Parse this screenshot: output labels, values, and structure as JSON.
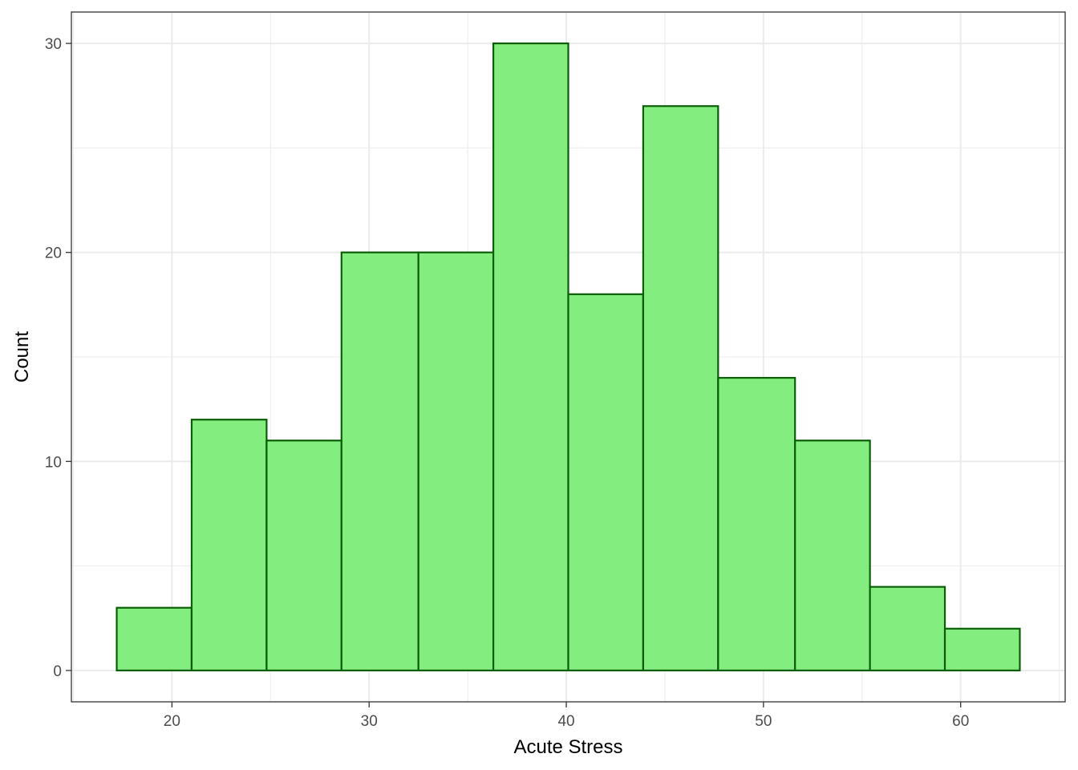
{
  "chart_data": {
    "type": "bar",
    "title": "",
    "xlabel": "Acute Stress",
    "ylabel": "Count",
    "bins": [
      {
        "x0": 17.2,
        "x1": 21.0,
        "count": 3
      },
      {
        "x0": 21.0,
        "x1": 24.8,
        "count": 12
      },
      {
        "x0": 24.8,
        "x1": 28.6,
        "count": 11
      },
      {
        "x0": 28.6,
        "x1": 32.5,
        "count": 20
      },
      {
        "x0": 32.5,
        "x1": 36.3,
        "count": 20
      },
      {
        "x0": 36.3,
        "x1": 40.1,
        "count": 30
      },
      {
        "x0": 40.1,
        "x1": 43.9,
        "count": 18
      },
      {
        "x0": 43.9,
        "x1": 47.7,
        "count": 27
      },
      {
        "x0": 47.7,
        "x1": 51.6,
        "count": 14
      },
      {
        "x0": 51.6,
        "x1": 55.4,
        "count": 11
      },
      {
        "x0": 55.4,
        "x1": 59.2,
        "count": 4
      },
      {
        "x0": 59.2,
        "x1": 63.0,
        "count": 2
      }
    ],
    "xlim": [
      14.9,
      65.3
    ],
    "ylim": [
      -1.5,
      31.5
    ],
    "x_ticks": [
      20,
      30,
      40,
      50,
      60
    ],
    "y_ticks": [
      0,
      10,
      20,
      30
    ],
    "x_tick_labels": [
      "20",
      "30",
      "40",
      "50",
      "60"
    ],
    "y_tick_labels": [
      "0",
      "10",
      "20",
      "30"
    ],
    "grid": true,
    "colors": {
      "bar_fill": "#83ee7f",
      "bar_stroke": "#0b5e06",
      "grid": "#ebebeb",
      "panel_border": "#333333",
      "tick_text": "#4d4d4d"
    }
  }
}
